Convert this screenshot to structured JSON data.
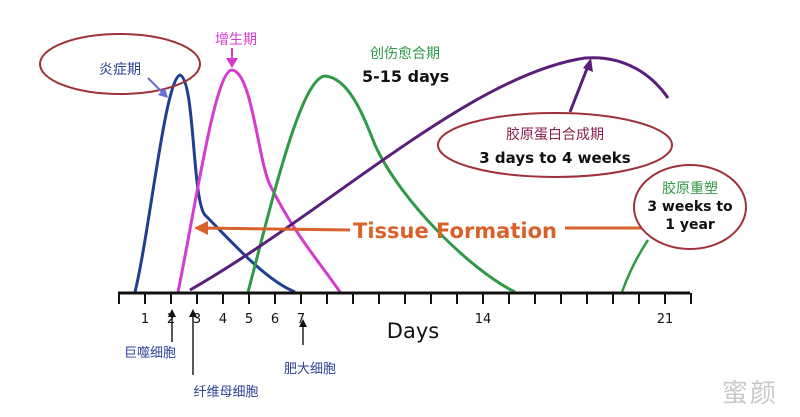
{
  "phases": {
    "inflammation": {
      "label": "炎症期",
      "color": "#1f3f8f"
    },
    "proliferation": {
      "label": "增生期",
      "color": "#d63bd0"
    },
    "healing": {
      "label": "创伤愈合期",
      "duration": "5-15 days",
      "color": "#2f9a45"
    },
    "collagen_synthesis": {
      "label": "胶原蛋白合成期",
      "duration": "3 days to 4 weeks",
      "color": "#5a1f7a"
    },
    "collagen_remodeling": {
      "label": "胶原重塑",
      "duration_line1": "3 weeks to",
      "duration_line2": "1 year",
      "color": "#2f9a45"
    }
  },
  "banner": {
    "text": "Tissue Formation",
    "color": "#d9622b"
  },
  "axis": {
    "label": "Days",
    "ticks": [
      "1",
      "2",
      "3",
      "4",
      "5",
      "6",
      "7",
      "14",
      "21"
    ]
  },
  "cells": {
    "macrophage": "巨噬细胞",
    "fibroblast": "纤维母细胞",
    "mast_cell": "肥大细胞"
  },
  "watermark": "蜜颜",
  "colors": {
    "ellipse_border": "#a0303a",
    "axis": "#111111"
  }
}
